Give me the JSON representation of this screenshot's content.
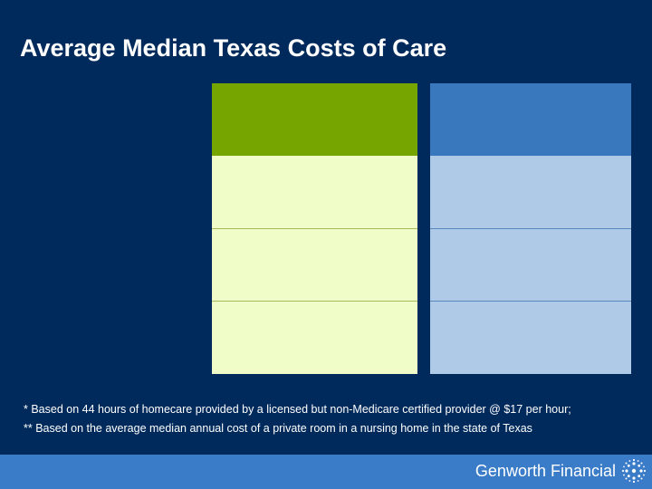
{
  "slide": {
    "title": "Average Median Texas Costs of Care",
    "footnotes": [
      " *  Based on 44 hours of homecare provided by a licensed but non-Medicare certified provider @ $17 per hour;",
      "** Based on the average median annual cost of a private room in a nursing home in the state of Texas"
    ],
    "brand": "Genworth Financial",
    "colors": {
      "background": "#002a5c",
      "left_header": "#76a500",
      "left_body": "#f0fdc8",
      "right_header": "#3a78be",
      "right_body": "#aecae6",
      "bottom_bar": "#3a7cc8"
    },
    "logo_icon": "genworth-sunburst-icon"
  }
}
